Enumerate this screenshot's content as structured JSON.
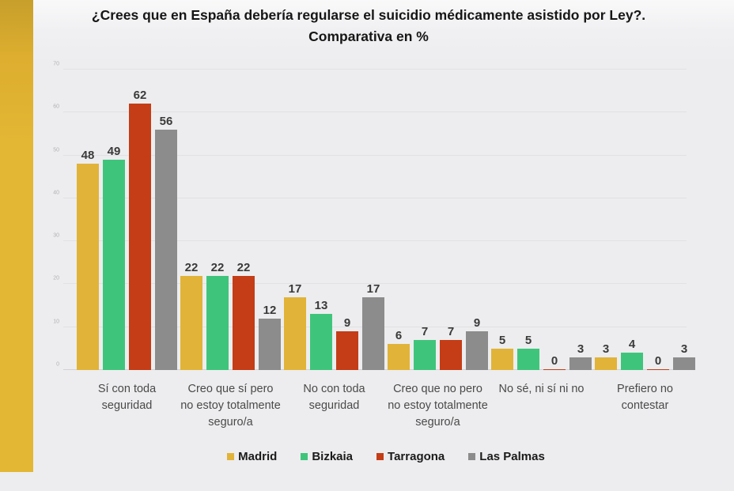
{
  "page": {
    "background": "#EDEDEF",
    "left_band_color": "#E3B634"
  },
  "title": {
    "line1": "¿Crees que en España debería regularse el suicidio médicamente asistido por Ley?.",
    "line2": "Comparativa en %"
  },
  "chart_data": {
    "type": "bar",
    "title": "¿Crees que en España debería regularse el suicidio médicamente asistido por Ley?. Comparativa en %",
    "categories": [
      "Sí con toda seguridad",
      "Creo que sí pero no estoy totalmente seguro/a",
      "No con toda seguridad",
      "Creo que no pero no estoy totalmente seguro/a",
      "No sé, ni sí ni no",
      "Prefiero no contestar"
    ],
    "series": [
      {
        "name": "Madrid",
        "color": "#E1B338",
        "values": [
          48,
          22,
          17,
          6,
          5,
          3
        ]
      },
      {
        "name": "Bizkaia",
        "color": "#3FC57B",
        "values": [
          49,
          22,
          13,
          7,
          5,
          4
        ]
      },
      {
        "name": "Tarragona",
        "color": "#C43D17",
        "values": [
          62,
          22,
          9,
          7,
          0,
          0
        ]
      },
      {
        "name": "Las Palmas",
        "color": "#8C8C8C",
        "values": [
          56,
          12,
          17,
          9,
          3,
          3
        ]
      }
    ],
    "xlabel": "",
    "ylabel": "",
    "ylim": [
      0,
      70
    ],
    "yticks": [
      0,
      10,
      20,
      30,
      40,
      50,
      60,
      70
    ],
    "grid": true,
    "value_labels": true,
    "legend_position": "bottom"
  }
}
